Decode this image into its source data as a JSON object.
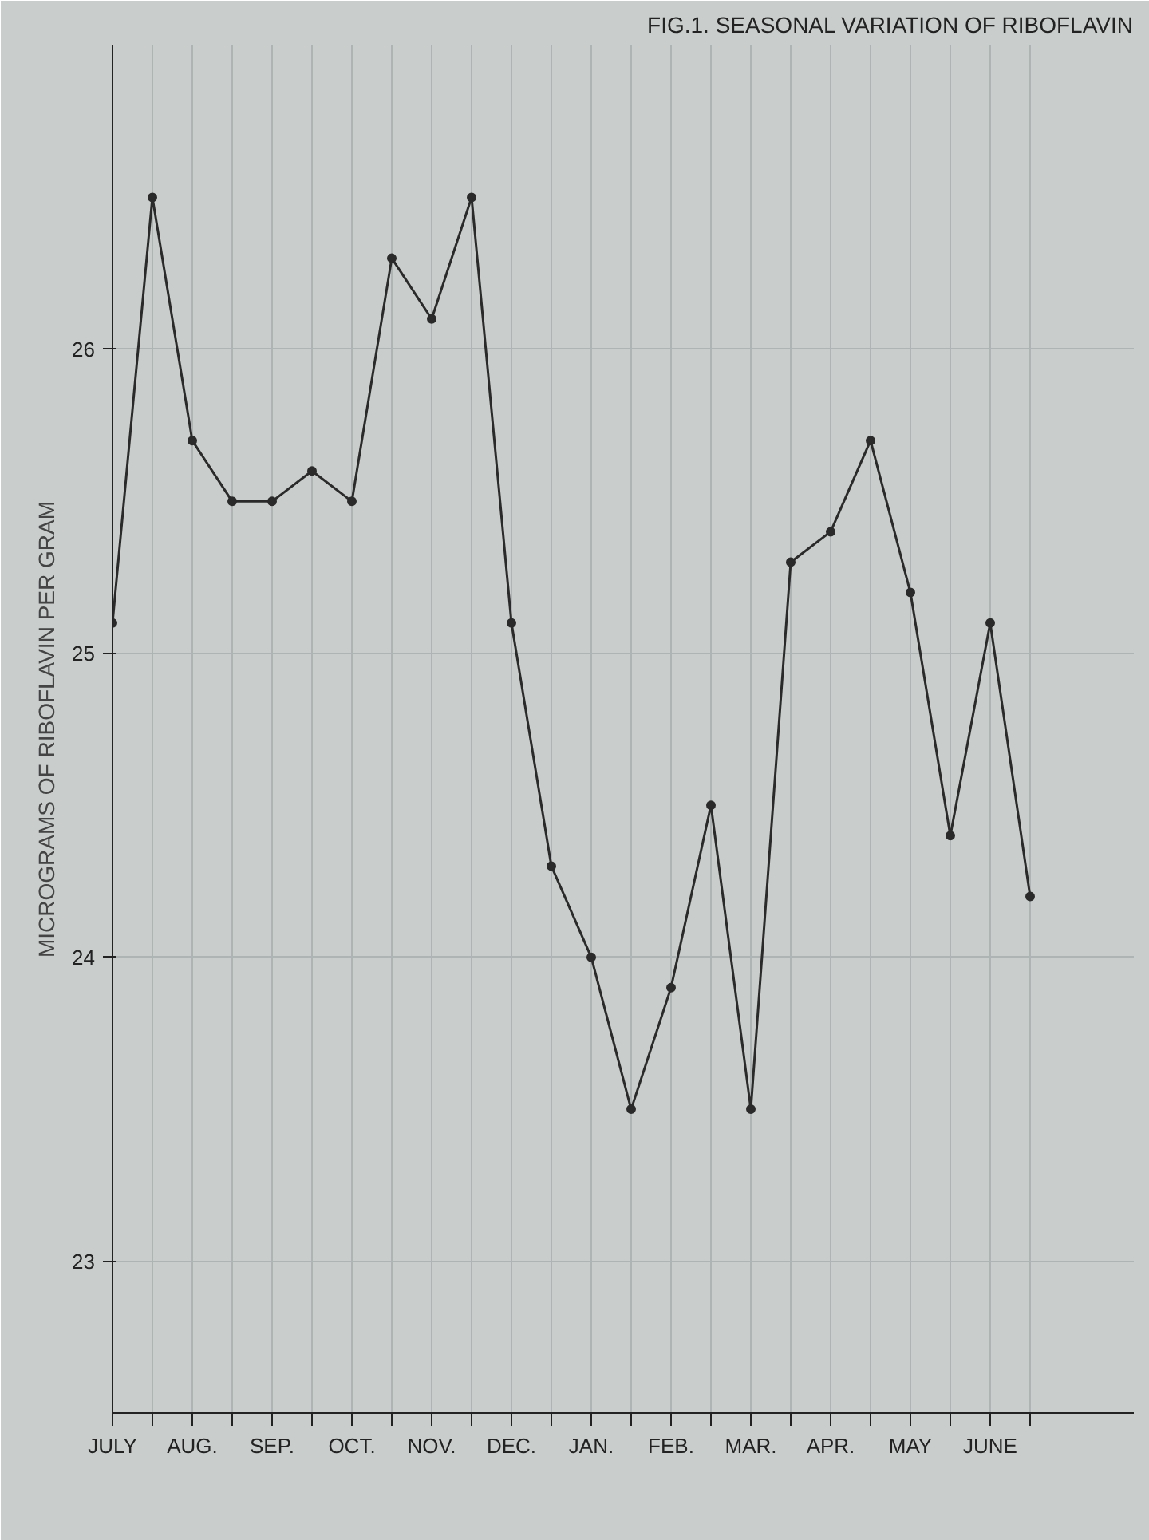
{
  "chart_data": {
    "type": "line",
    "title": "FIG.1. SEASONAL VARIATION OF RIBOFLAVIN",
    "ylabel": "MICROGRAMS OF RIBOFLAVIN PER GRAM",
    "categories": [
      "JULY",
      null,
      "AUG.",
      null,
      "SEP.",
      null,
      "OCT.",
      null,
      "NOV.",
      null,
      "DEC.",
      null,
      "JAN.",
      null,
      "FEB.",
      null,
      "MAR.",
      null,
      "APR.",
      null,
      "MAY",
      null,
      "JUNE",
      null
    ],
    "series": [
      {
        "color": "#2a2a2a",
        "values": [
          25.1,
          26.5,
          25.7,
          25.5,
          25.5,
          25.6,
          25.5,
          26.3,
          26.1,
          26.5,
          25.1,
          24.3,
          24.0,
          23.5,
          23.9,
          24.5,
          23.5,
          25.3,
          25.4,
          25.7,
          25.2,
          24.4,
          25.1,
          24.2
        ]
      }
    ],
    "ylim": [
      22.5,
      27
    ],
    "yticks": [
      23,
      24,
      25,
      26
    ],
    "grid": true,
    "marker": "circle",
    "line_style": "solid"
  }
}
